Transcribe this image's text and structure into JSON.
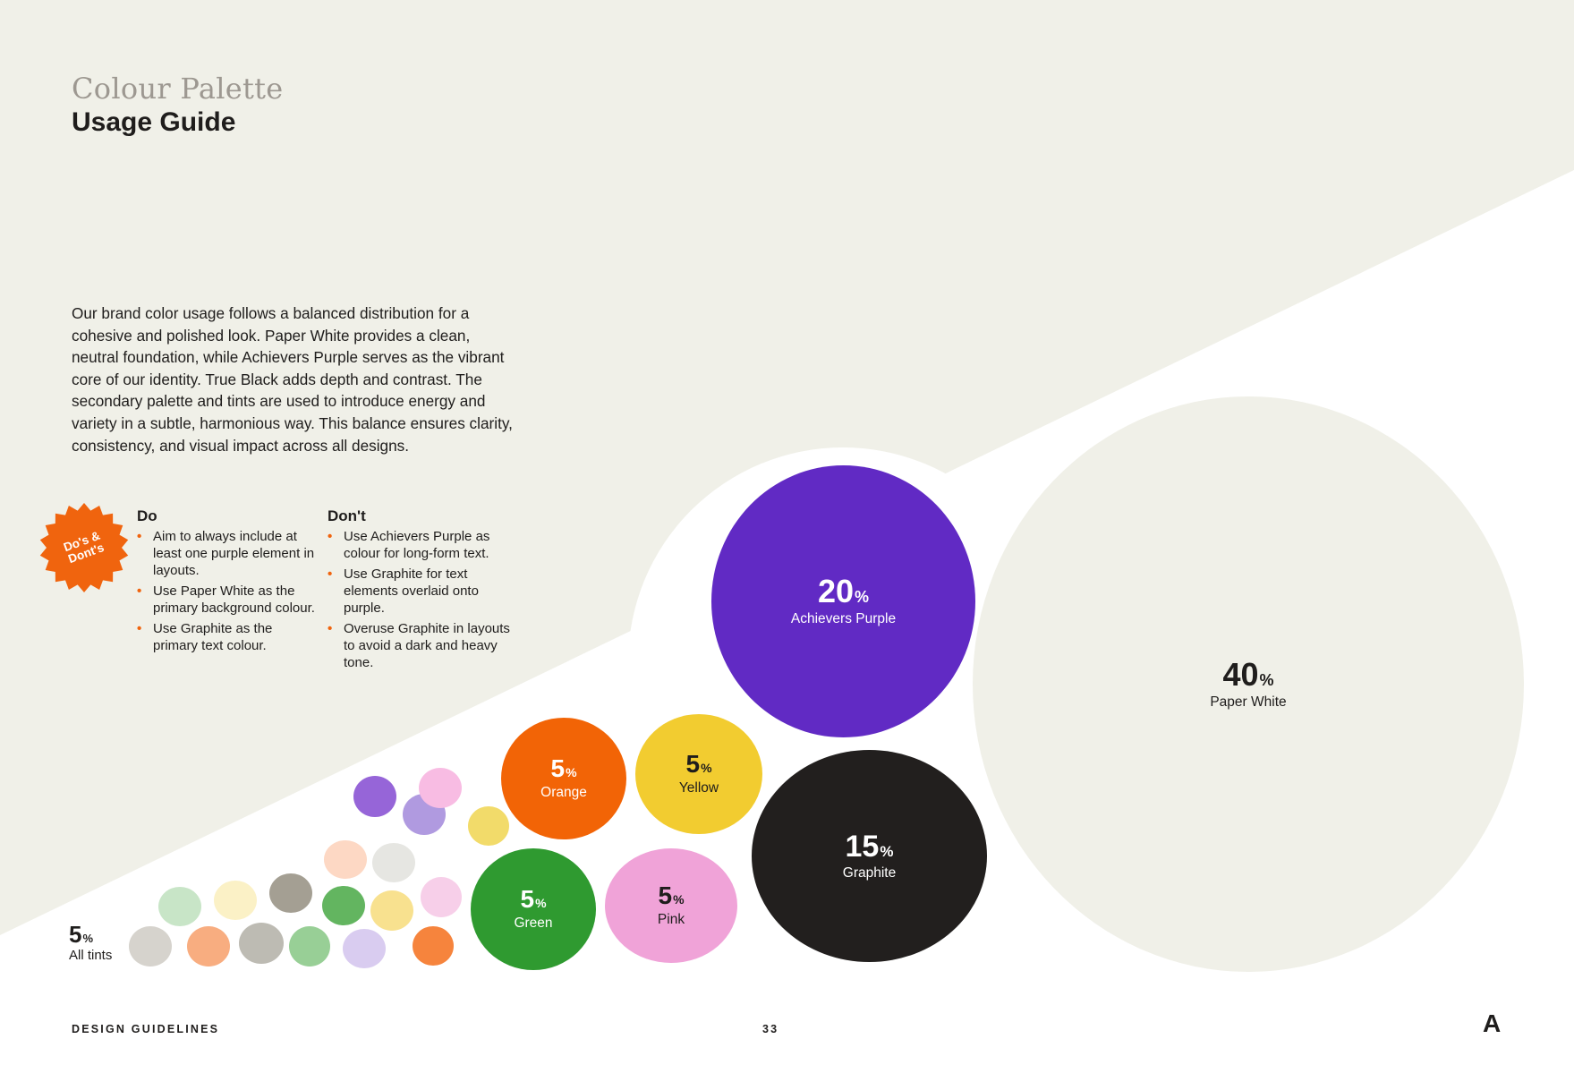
{
  "header": {
    "title_serif": "Colour Palette",
    "title_main": "Usage Guide"
  },
  "intro": "Our brand color usage follows a balanced distribution for a cohesive and polished look. Paper White provides a clean, neutral foundation, while Achievers Purple serves as the vibrant core of our identity. True Black adds depth and contrast. The secondary palette and tints are used to introduce energy and variety in a subtle, harmonious way. This balance ensures clarity, consistency, and visual impact across all designs.",
  "badge": {
    "line1": "Do's &",
    "line2": "Dont's",
    "color": "#f0640e"
  },
  "do": {
    "heading": "Do",
    "items": [
      "Aim to always include at least one purple element in layouts.",
      "Use Paper White as the primary background colour.",
      "Use Graphite as the primary text colour."
    ]
  },
  "dont": {
    "heading": "Don't",
    "items": [
      "Use Achievers Purple as colour for long-form text.",
      "Use Graphite for text elements overlaid onto purple.",
      "Overuse Graphite in layouts to avoid a dark and heavy tone."
    ]
  },
  "distribution": [
    {
      "key": "paper_white",
      "value": "40",
      "sign": "%",
      "label": "Paper White",
      "color": "#f0f0e8",
      "text_color": "#1f1d1c"
    },
    {
      "key": "purple",
      "value": "20",
      "sign": "%",
      "label": "Achievers Purple",
      "color": "#612ac4",
      "text_color": "#ffffff"
    },
    {
      "key": "graphite",
      "value": "15",
      "sign": "%",
      "label": "Graphite",
      "color": "#221f1e",
      "text_color": "#ffffff"
    },
    {
      "key": "orange",
      "value": "5",
      "sign": "%",
      "label": "Orange",
      "color": "#f26406",
      "text_color": "#ffffff"
    },
    {
      "key": "yellow",
      "value": "5",
      "sign": "%",
      "label": "Yellow",
      "color": "#f2cc30",
      "text_color": "#1f1d1c"
    },
    {
      "key": "green",
      "value": "5",
      "sign": "%",
      "label": "Green",
      "color": "#2f9a30",
      "text_color": "#ffffff"
    },
    {
      "key": "pink",
      "value": "5",
      "sign": "%",
      "label": "Pink",
      "color": "#f0a3d8",
      "text_color": "#1f1d1c"
    }
  ],
  "tints": {
    "value": "5",
    "sign": "%",
    "label": "All tints",
    "colors": [
      "#d6d3cd",
      "#f8ad80",
      "#bdbbb3",
      "#98cf96",
      "#d9ccf0",
      "#f6843d",
      "#c8e5c7",
      "#fbf1c6",
      "#a49f93",
      "#63b560",
      "#f8e18f",
      "#f7cfe9",
      "#fdd8c4",
      "#e6e6e2",
      "#b09ae0",
      "#9665d8",
      "#f8bce3",
      "#f2db6a"
    ]
  },
  "footer": {
    "left": "DESIGN GUIDELINES",
    "page": "33",
    "logo": "A"
  },
  "colors": {
    "paper_white": "#f0f0e8",
    "graphite": "#1f1d1c",
    "accent_orange": "#f0640e",
    "muted_title": "#9d9891"
  }
}
